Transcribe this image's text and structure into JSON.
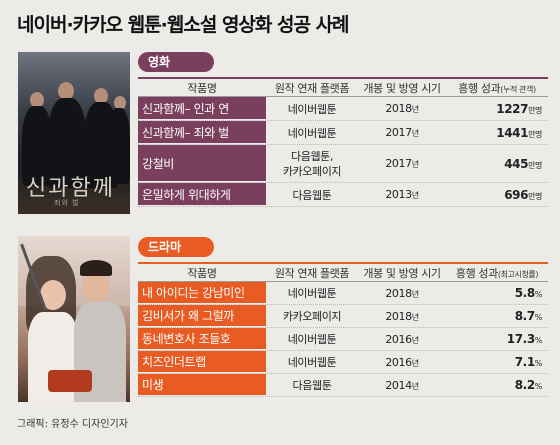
{
  "title": "네이버·카카오 웹툰·웹소설 영상화 성공 사례",
  "credit": "그래픽: 유정수 디자인기자",
  "poster_movie_text": "신과함께",
  "poster_movie_sub": "죄와 벌",
  "sections": {
    "movie": {
      "label": "영화"
    },
    "drama": {
      "label": "드라마"
    }
  },
  "headers": {
    "title": "작품명",
    "platform": "원작 연재 플랫폼",
    "year": "개봉 및 방영 시기",
    "result_main": "흥행 성과",
    "result_movie_note": "(누적 관객)",
    "result_drama_note": "(최고시청률)"
  },
  "units": {
    "movie": "만명",
    "drama": "%",
    "year": "년"
  },
  "colors": {
    "movie": "#7b3f5e",
    "drama": "#e85b22",
    "background": "#ecebe8"
  },
  "chart_data": [
    {
      "type": "table",
      "section": "영화",
      "columns": [
        "작품명",
        "원작 연재 플랫폼",
        "개봉 및 방영 시기",
        "흥행 성과(누적 관객)"
      ],
      "rows": [
        {
          "title": "신과함께– 인과 연",
          "platform": "네이버웹툰",
          "year": "2018",
          "value": "1227"
        },
        {
          "title": "신과함께– 죄와 벌",
          "platform": "네이버웹툰",
          "year": "2017",
          "value": "1441"
        },
        {
          "title": "강철비",
          "platform": "다음웹툰, 카카오페이지",
          "platform_lines": [
            "다음웹툰,",
            "카카오페이지"
          ],
          "year": "2017",
          "value": "445"
        },
        {
          "title": "은밀하게 위대하게",
          "platform": "다음웹툰",
          "year": "2013",
          "value": "696"
        }
      ]
    },
    {
      "type": "table",
      "section": "드라마",
      "columns": [
        "작품명",
        "원작 연재 플랫폼",
        "개봉 및 방영 시기",
        "흥행 성과(최고시청률)"
      ],
      "rows": [
        {
          "title": "내 아이디는 강남미인",
          "platform": "네이버웹툰",
          "year": "2018",
          "value": "5.8"
        },
        {
          "title": "김비서가 왜 그럴까",
          "platform": "카카오페이지",
          "year": "2018",
          "value": "8.7"
        },
        {
          "title": "동네변호사 조들호",
          "platform": "네이버웹툰",
          "year": "2016",
          "value": "17.3"
        },
        {
          "title": "치즈인더트랩",
          "platform": "네이버웹툰",
          "year": "2016",
          "value": "7.1"
        },
        {
          "title": "미생",
          "platform": "다음웹툰",
          "year": "2014",
          "value": "8.2"
        }
      ]
    }
  ]
}
